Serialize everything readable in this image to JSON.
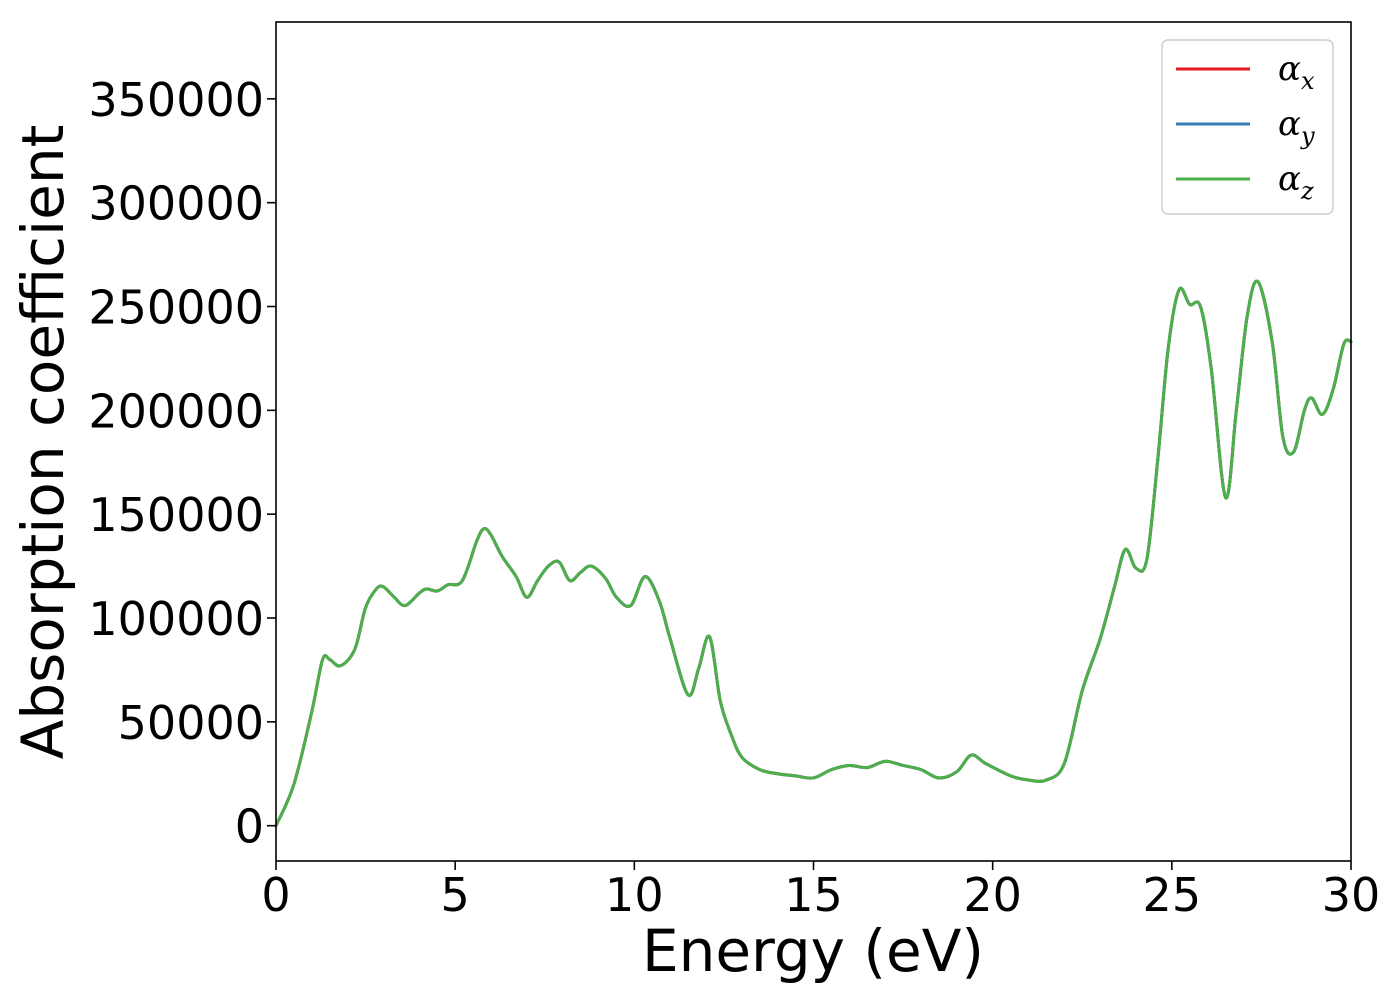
{
  "chart_data": {
    "type": "line",
    "title": "",
    "xlabel": "Energy (eV)",
    "ylabel": "Absorption coefficient",
    "xlim": [
      0,
      30
    ],
    "ylim": [
      -17000,
      387000
    ],
    "x_ticks": [
      0,
      5,
      10,
      15,
      20,
      25,
      30
    ],
    "x_tick_labels": [
      "0",
      "5",
      "10",
      "15",
      "20",
      "25",
      "30"
    ],
    "y_ticks": [
      0,
      50000,
      100000,
      150000,
      200000,
      250000,
      300000,
      350000
    ],
    "y_tick_labels": [
      "0",
      "50000",
      "100000",
      "150000",
      "200000",
      "250000",
      "300000",
      "350000"
    ],
    "grid": false,
    "legend_position": "top-right",
    "x": [
      0,
      0.5,
      1.0,
      1.3,
      1.5,
      1.8,
      2.2,
      2.5,
      2.8,
      3.0,
      3.3,
      3.6,
      4.0,
      4.2,
      4.5,
      4.8,
      5.2,
      5.6,
      5.8,
      6.0,
      6.3,
      6.7,
      7.0,
      7.3,
      7.6,
      7.9,
      8.2,
      8.5,
      8.8,
      9.2,
      9.5,
      9.9,
      10.3,
      10.7,
      11.0,
      11.5,
      11.8,
      12.1,
      12.4,
      12.7,
      13.0,
      13.5,
      14.0,
      14.5,
      15.0,
      15.5,
      16.0,
      16.5,
      17.0,
      17.5,
      18.0,
      18.5,
      19.0,
      19.4,
      19.8,
      20.5,
      21.0,
      21.5,
      22.0,
      22.5,
      23.0,
      23.4,
      23.7,
      24.0,
      24.3,
      24.6,
      24.9,
      25.2,
      25.5,
      25.8,
      26.1,
      26.5,
      26.8,
      27.1,
      27.4,
      27.8,
      28.1,
      28.4,
      28.7,
      28.9,
      29.2,
      29.5,
      29.8,
      30.0
    ],
    "series": [
      {
        "name": "α_x",
        "label_base": "α",
        "label_sub": "x",
        "color": "#e41a1c",
        "values": [
          0,
          20000,
          55000,
          80000,
          80000,
          77000,
          85000,
          105000,
          114000,
          115000,
          110000,
          106000,
          112000,
          114000,
          113000,
          116000,
          118000,
          137000,
          143000,
          140000,
          130000,
          120000,
          110000,
          118000,
          125000,
          127000,
          118000,
          122000,
          125000,
          119000,
          110000,
          106000,
          120000,
          108000,
          90000,
          63000,
          76000,
          91000,
          60000,
          44000,
          33000,
          27000,
          25000,
          24000,
          23000,
          27000,
          29000,
          28000,
          31000,
          29000,
          27000,
          23000,
          26000,
          34000,
          30000,
          24000,
          22000,
          22000,
          30000,
          65000,
          90000,
          115000,
          133000,
          124000,
          128000,
          175000,
          230000,
          258000,
          251000,
          250000,
          220000,
          158000,
          200000,
          245000,
          262000,
          233000,
          187000,
          180000,
          200000,
          206000,
          198000,
          210000,
          232000,
          233000
        ]
      },
      {
        "name": "α_y",
        "label_base": "α",
        "label_sub": "y",
        "color": "#377eb8",
        "values": [
          0,
          20000,
          55000,
          80000,
          80000,
          77000,
          85000,
          105000,
          114000,
          115000,
          110000,
          106000,
          112000,
          114000,
          113000,
          116000,
          118000,
          137000,
          143000,
          140000,
          130000,
          120000,
          110000,
          118000,
          125000,
          127000,
          118000,
          122000,
          125000,
          119000,
          110000,
          106000,
          120000,
          108000,
          90000,
          63000,
          76000,
          91000,
          60000,
          44000,
          33000,
          27000,
          25000,
          24000,
          23000,
          27000,
          29000,
          28000,
          31000,
          29000,
          27000,
          23000,
          26000,
          34000,
          30000,
          24000,
          22000,
          22000,
          30000,
          65000,
          90000,
          115000,
          133000,
          124000,
          128000,
          175000,
          230000,
          258000,
          251000,
          250000,
          220000,
          158000,
          200000,
          245000,
          262000,
          233000,
          187000,
          180000,
          200000,
          206000,
          198000,
          210000,
          232000,
          233000
        ]
      },
      {
        "name": "α_z",
        "label_base": "α",
        "label_sub": "z",
        "color": "#4daf4a",
        "values": [
          0,
          20000,
          55000,
          80000,
          80000,
          77000,
          85000,
          105000,
          114000,
          115000,
          110000,
          106000,
          112000,
          114000,
          113000,
          116000,
          118000,
          137000,
          143000,
          140000,
          130000,
          120000,
          110000,
          118000,
          125000,
          127000,
          118000,
          122000,
          125000,
          119000,
          110000,
          106000,
          120000,
          108000,
          90000,
          63000,
          76000,
          91000,
          60000,
          44000,
          33000,
          27000,
          25000,
          24000,
          23000,
          27000,
          29000,
          28000,
          31000,
          29000,
          27000,
          23000,
          26000,
          34000,
          30000,
          24000,
          22000,
          22000,
          30000,
          65000,
          90000,
          115000,
          133000,
          124000,
          128000,
          175000,
          230000,
          258000,
          251000,
          250000,
          220000,
          158000,
          200000,
          245000,
          262000,
          233000,
          187000,
          180000,
          200000,
          206000,
          198000,
          210000,
          232000,
          233000
        ]
      }
    ]
  }
}
